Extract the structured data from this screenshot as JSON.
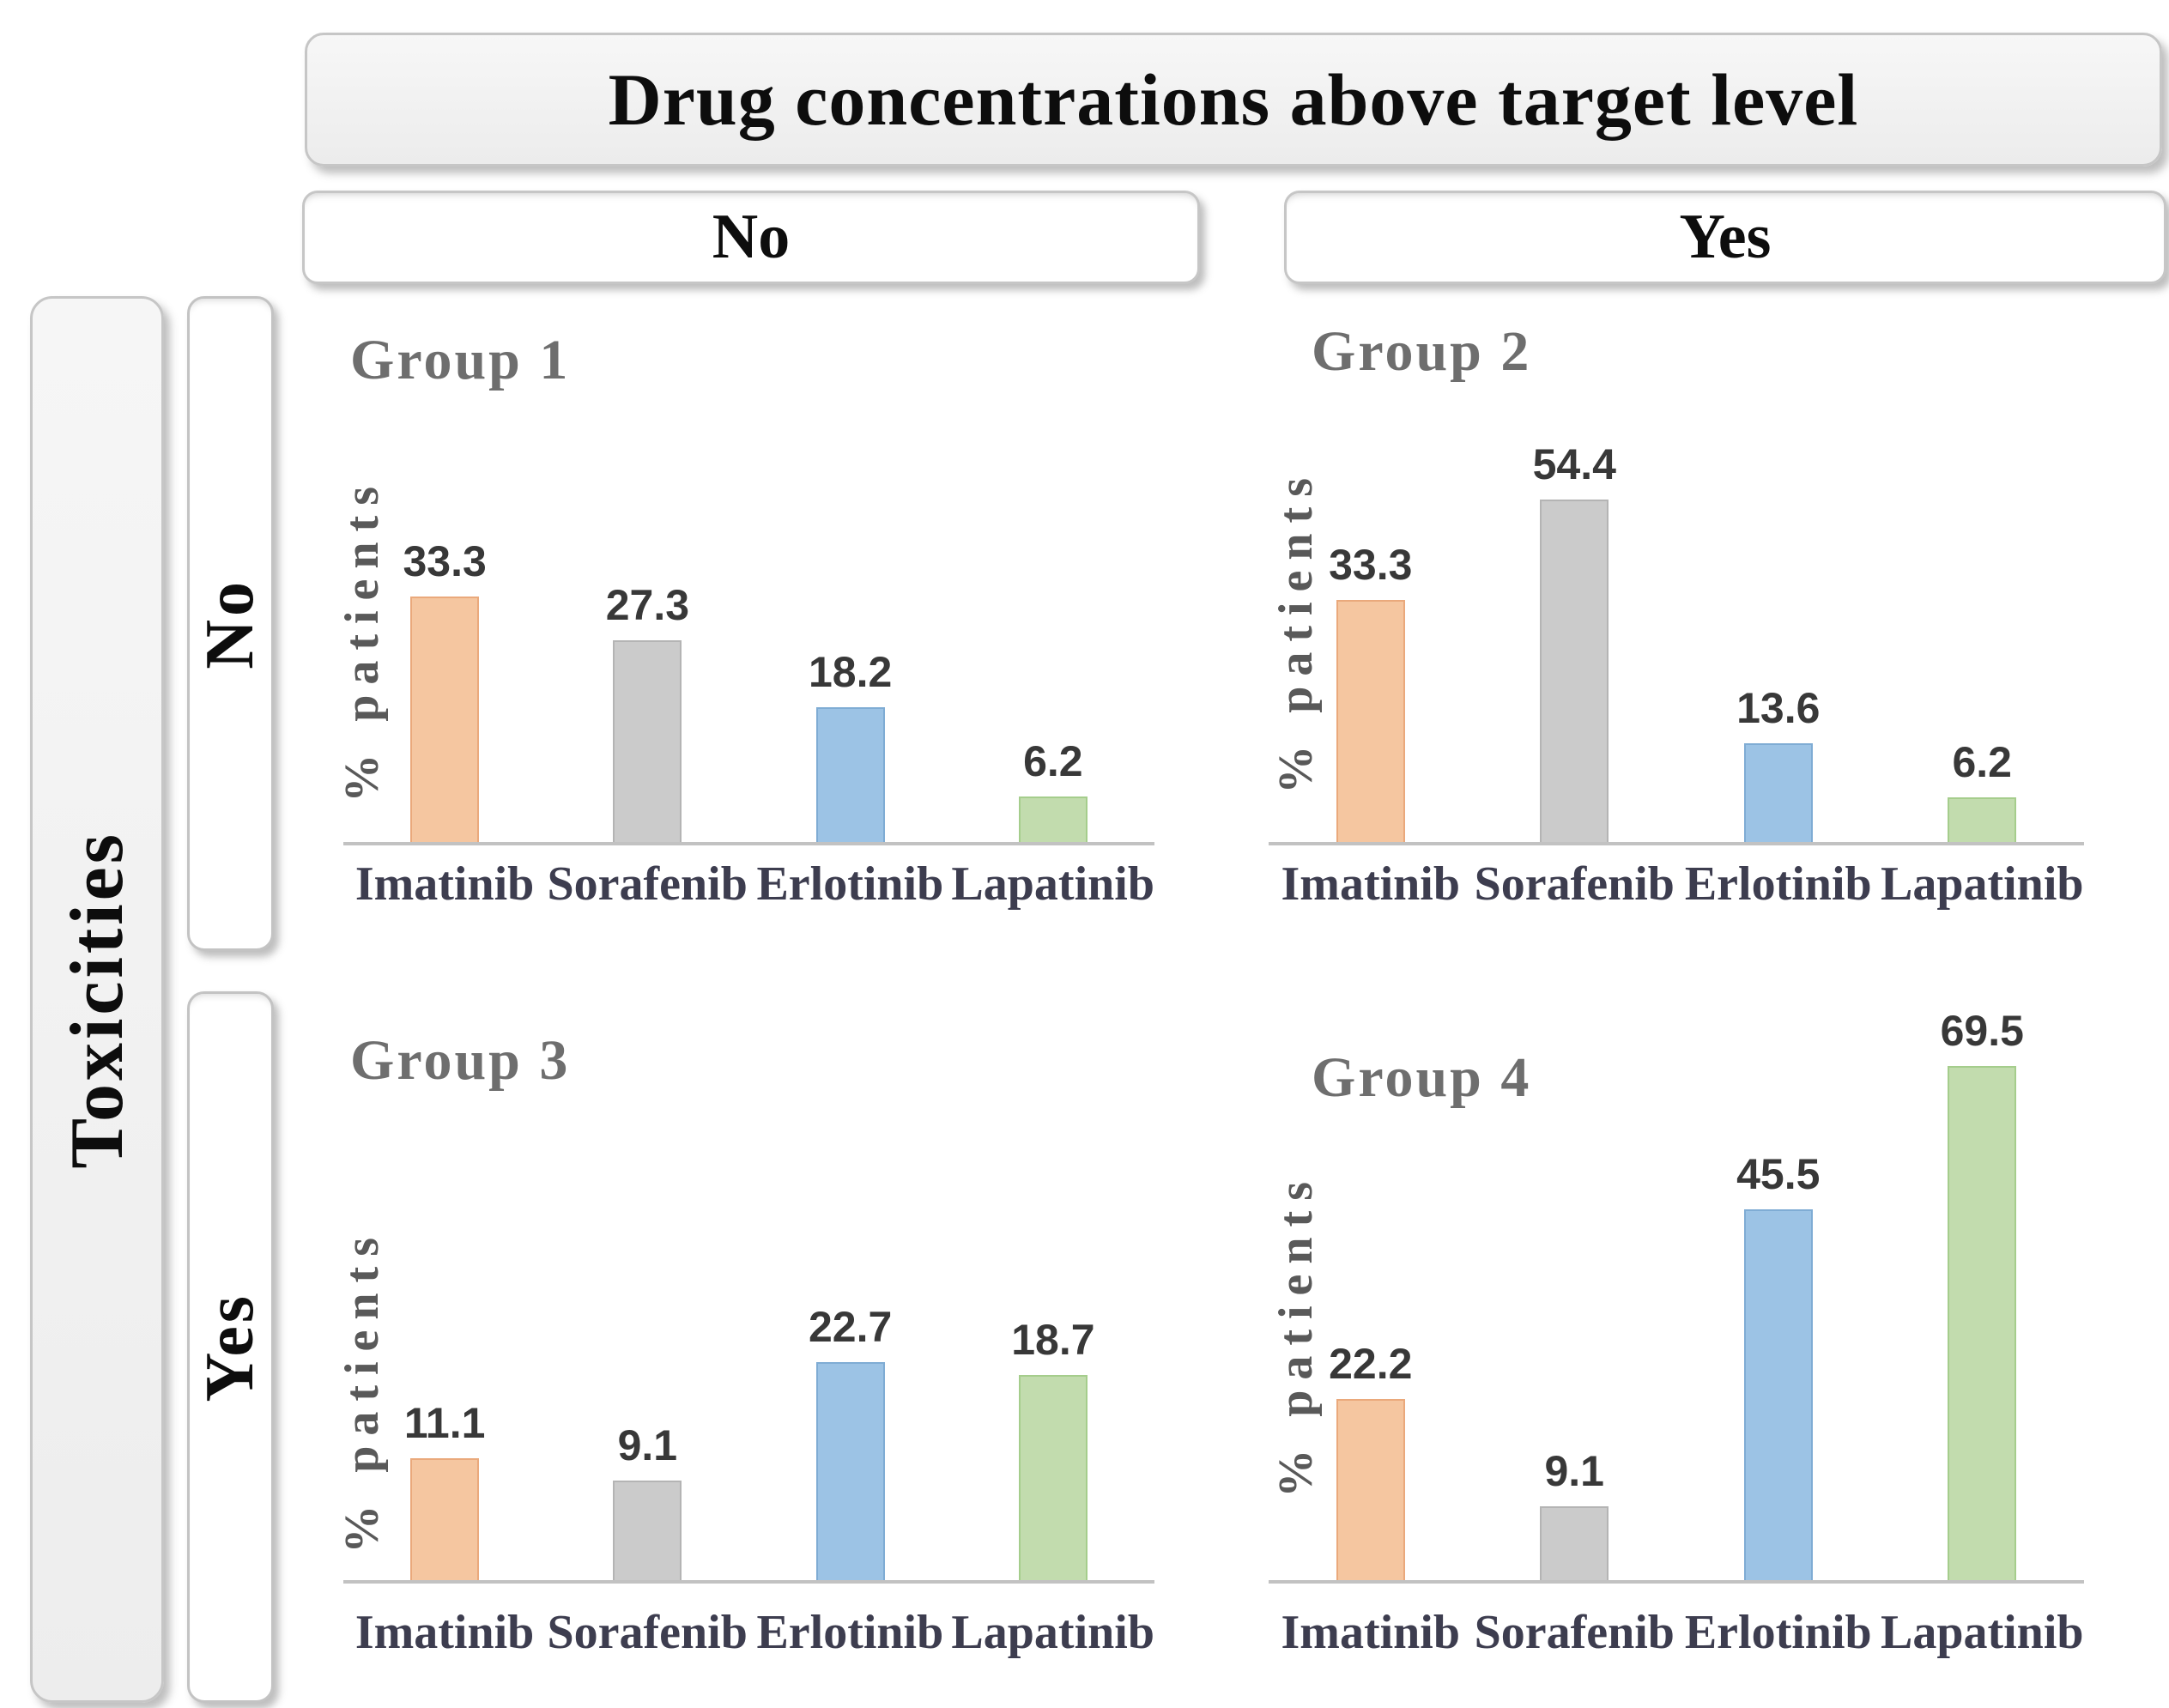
{
  "figure": {
    "title": "Drug concentrations above target level",
    "column_axis": {
      "labels": [
        "No",
        "Yes"
      ]
    },
    "row_axis": {
      "title": "Toxicities",
      "labels": [
        "No",
        "Yes"
      ]
    }
  },
  "colors": {
    "series": [
      {
        "name": "Imatinib",
        "fill": "#F5C6A0",
        "border": "#EAA97C"
      },
      {
        "name": "Sorafenib",
        "fill": "#CBCBCB",
        "border": "#B4B4B4"
      },
      {
        "name": "Erlotinib",
        "fill": "#9CC3E5",
        "border": "#7FACD4"
      },
      {
        "name": "Lapatinib",
        "fill": "#C2DCAE",
        "border": "#A5CD8C"
      }
    ],
    "axis_line": "#C2C2C2",
    "group_title": "#6E6E6E",
    "value_label": "#383838",
    "x_label": "#3D3D4F",
    "y_label": "#595959"
  },
  "chart_data": [
    {
      "type": "bar",
      "title": "Group 1",
      "categories": [
        "Imatinib",
        "Sorafenib",
        "Erlotinib",
        "Lapatinib"
      ],
      "values": [
        33.3,
        27.3,
        18.2,
        6.2
      ],
      "xlabel": "",
      "ylabel": "% patients",
      "ylim": [
        0,
        50
      ],
      "grid": false,
      "legend": "none",
      "row_condition": "Toxicities: No",
      "column_condition": "Drug concentrations above target level: No"
    },
    {
      "type": "bar",
      "title": "Group 2",
      "categories": [
        "Imatinib",
        "Sorafenib",
        "Erlotinib",
        "Lapatinib"
      ],
      "values": [
        33.3,
        54.4,
        13.6,
        6.2
      ],
      "xlabel": "",
      "ylabel": "% patients",
      "ylim": [
        0,
        55
      ],
      "grid": false,
      "legend": "none",
      "row_condition": "Toxicities: No",
      "column_condition": "Drug concentrations above target level: Yes"
    },
    {
      "type": "bar",
      "title": "Group 3",
      "categories": [
        "Imatinib",
        "Sorafenib",
        "Erlotinib",
        "Lapatinib"
      ],
      "values": [
        11.1,
        9.1,
        22.7,
        18.7
      ],
      "xlabel": "",
      "ylabel": "% patients",
      "ylim": [
        0,
        25
      ],
      "grid": false,
      "legend": "none",
      "row_condition": "Toxicities: Yes",
      "column_condition": "Drug concentrations above target level: No"
    },
    {
      "type": "bar",
      "title": "Group 4",
      "categories": [
        "Imatinib",
        "Sorafenib",
        "Erlotinib",
        "Lapatinib"
      ],
      "values": [
        22.2,
        9.1,
        45.5,
        69.5
      ],
      "xlabel": "",
      "ylabel": "% patients",
      "ylim": [
        0,
        70
      ],
      "grid": false,
      "legend": "none",
      "row_condition": "Toxicities: Yes",
      "column_condition": "Drug concentrations above target level: Yes"
    }
  ]
}
